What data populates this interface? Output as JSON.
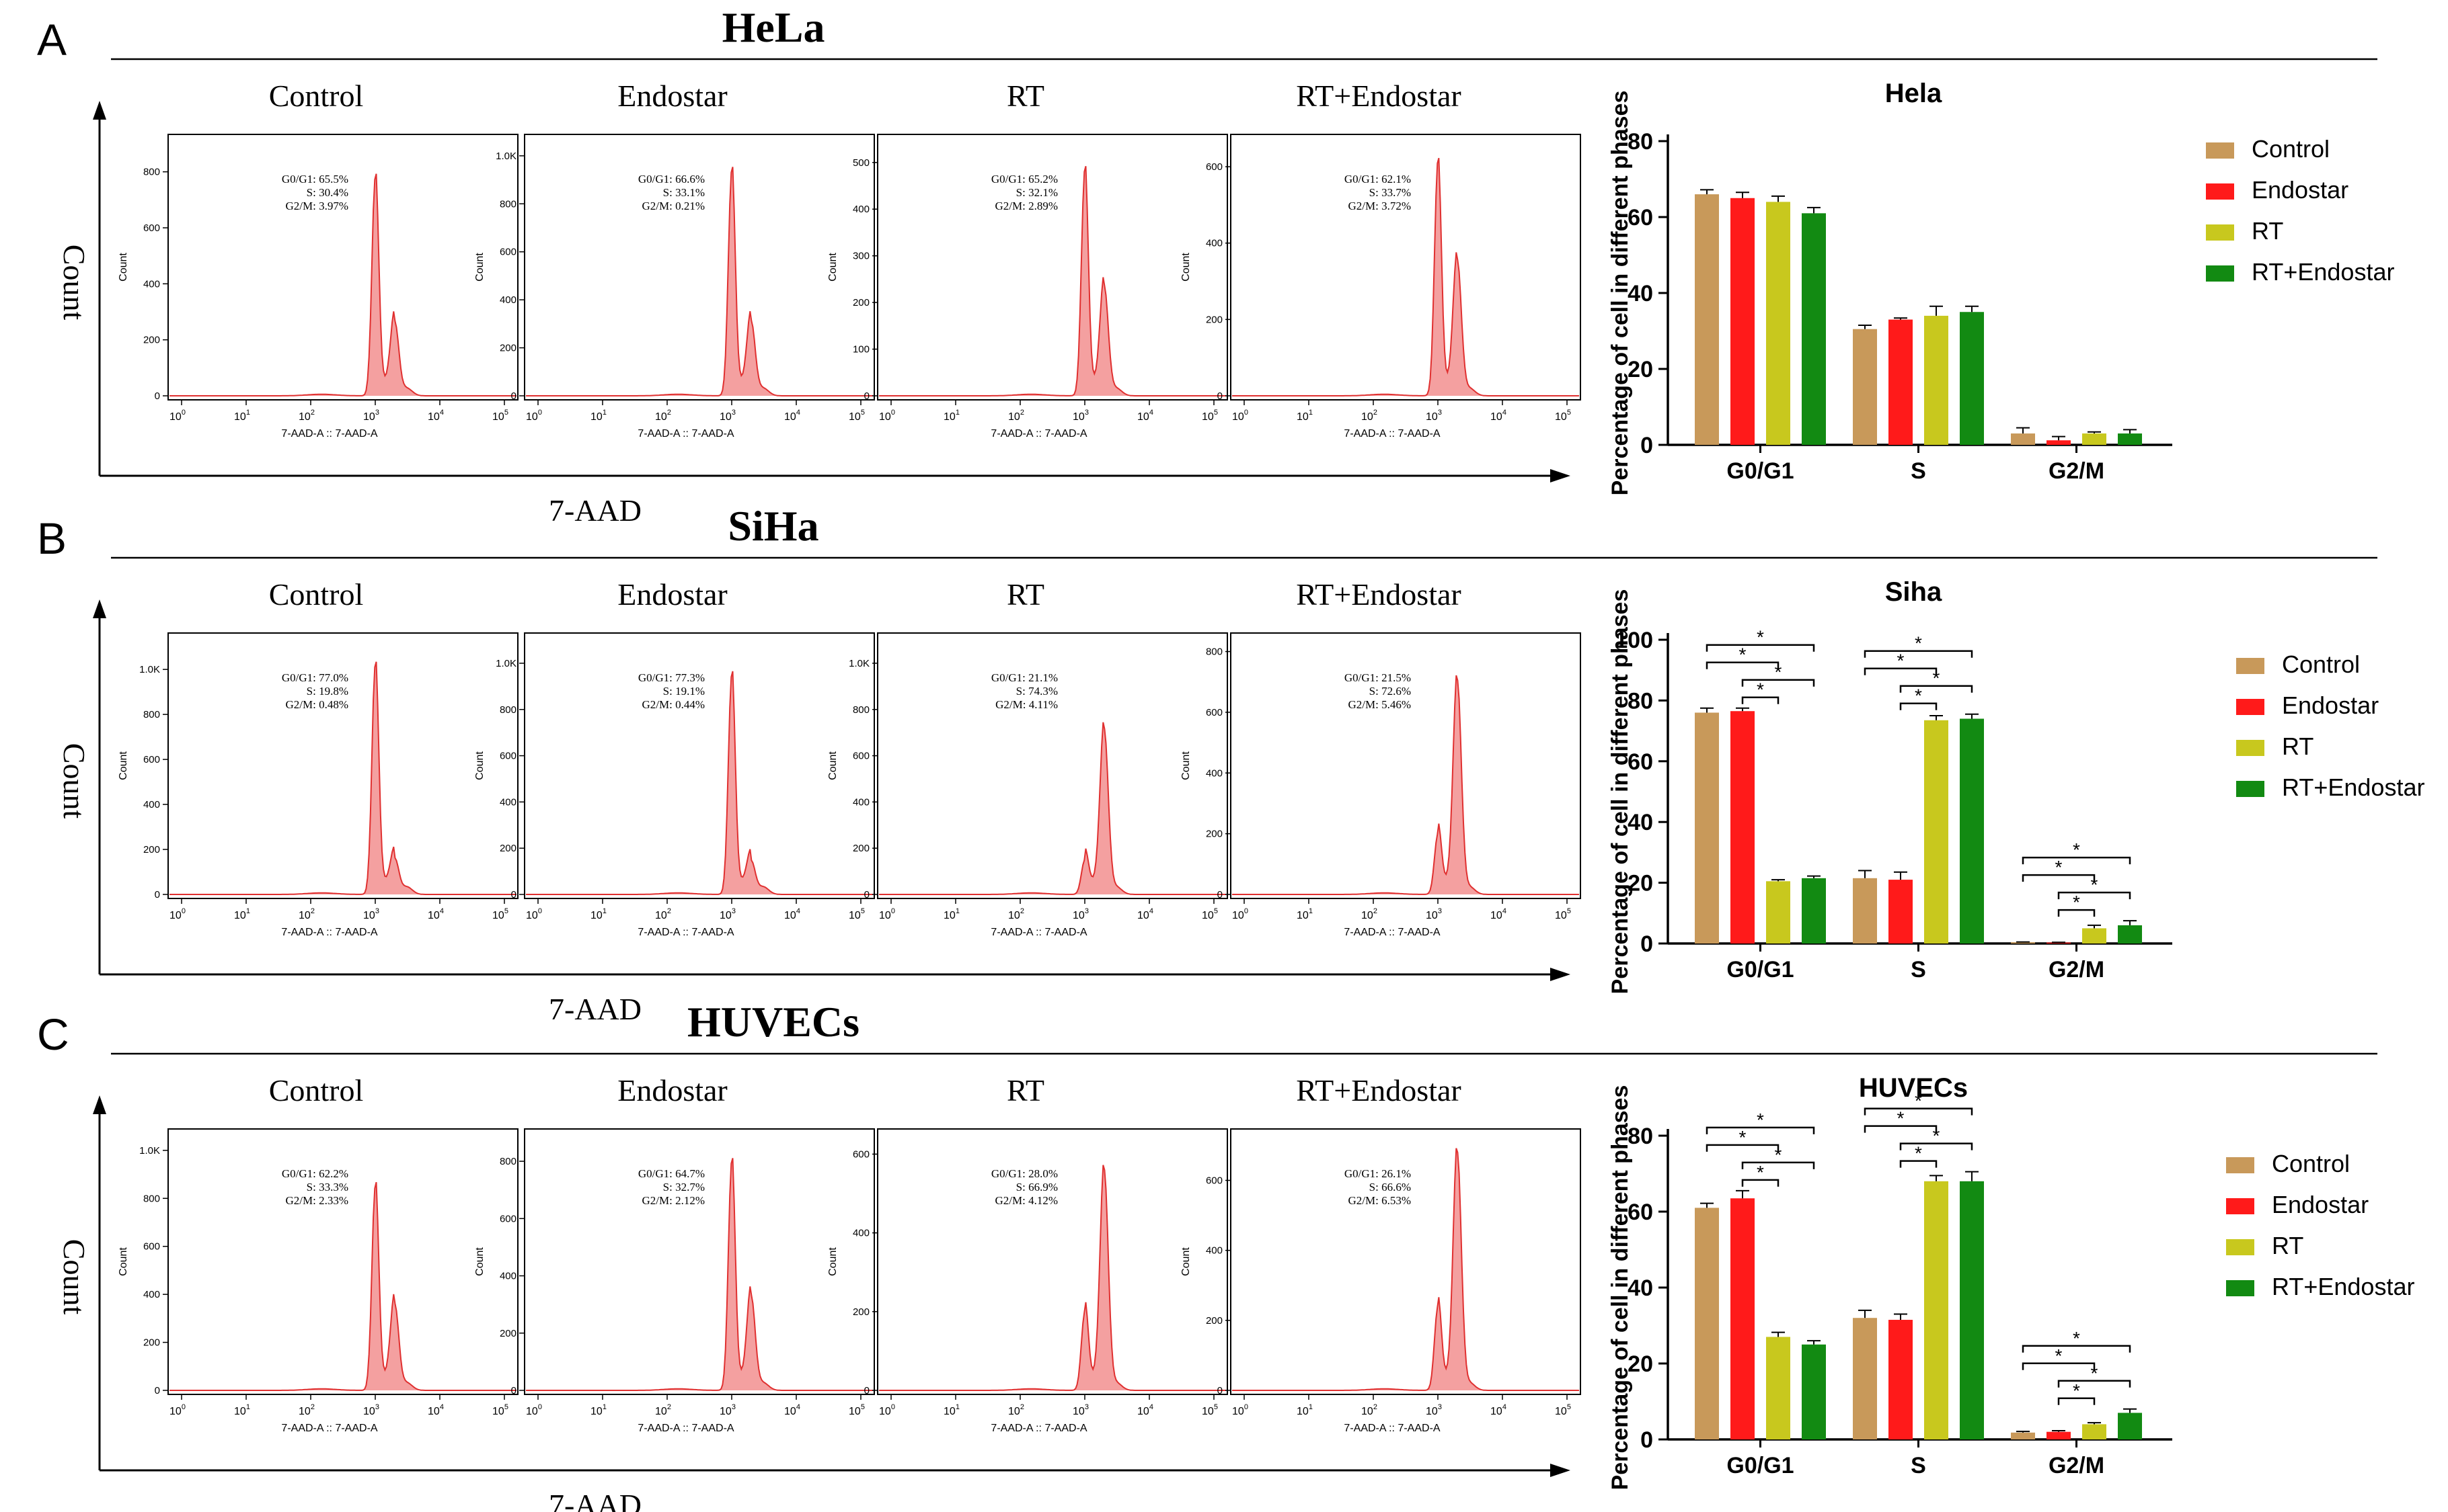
{
  "colors": {
    "Control": "#c8995a",
    "Endostar": "#ff1a1a",
    "RT": "#c8c81e",
    "RT+Endostar": "#128a12",
    "histogram_fill": "#f4a0a0",
    "histogram_line": "#e03030"
  },
  "axis_labels": {
    "flow_y": "Count",
    "flow_x": "7-AAD",
    "hist_x": "7-AAD-A :: 7-AAD-A",
    "hist_y": "Count",
    "bar_y": "Percentage of cell in different phases"
  },
  "panels": [
    {
      "letter": "A",
      "cell_line": "HeLa",
      "chart_title": "Hela",
      "histograms": [
        {
          "title": "Control",
          "ticks": [
            "0",
            "200",
            "400",
            "600",
            "800"
          ],
          "ymax": 900,
          "g1": 1000,
          "g1h": 780,
          "g2": 2000,
          "g2h": 265,
          "text": [
            "G0/G1: 65.5%",
            "S: 30.4%",
            "G2/M: 3.97%"
          ]
        },
        {
          "title": "Endostar",
          "ticks": [
            "0",
            "200",
            "400",
            "600",
            "800",
            "1.0K"
          ],
          "ymax": 1050,
          "g1": 1000,
          "g1h": 940,
          "g2": 2000,
          "g2h": 310,
          "text": [
            "G0/G1: 66.6%",
            "S: 33.1%",
            "G2/M: 0.21%"
          ]
        },
        {
          "title": "RT",
          "ticks": [
            "0",
            "100",
            "200",
            "300",
            "400",
            "500"
          ],
          "ymax": 540,
          "g1": 1000,
          "g1h": 485,
          "g2": 2000,
          "g2h": 235,
          "text": [
            "G0/G1: 65.2%",
            "S: 32.1%",
            "G2/M: 2.89%"
          ]
        },
        {
          "title": "RT+Endostar",
          "ticks": [
            "0",
            "200",
            "400",
            "600"
          ],
          "ymax": 660,
          "g1": 1000,
          "g1h": 615,
          "g2": 2000,
          "g2h": 355,
          "text": [
            "G0/G1: 62.1%",
            "S: 33.7%",
            "G2/M: 3.72%"
          ]
        }
      ],
      "ymax": 80,
      "yticks": [
        0,
        20,
        40,
        60,
        80
      ],
      "brackets": [],
      "show_flow_xlabel": true
    },
    {
      "letter": "B",
      "cell_line": "SiHa",
      "chart_title": "Siha",
      "histograms": [
        {
          "title": "Control",
          "ticks": [
            "0",
            "200",
            "400",
            "600",
            "800",
            "1.0K"
          ],
          "ymax": 1120,
          "g1": 1000,
          "g1h": 1020,
          "g2": 2000,
          "g2h": 160,
          "text": [
            "G0/G1: 77.0%",
            "S: 19.8%",
            "G2/M: 0.48%"
          ]
        },
        {
          "title": "Endostar",
          "ticks": [
            "0",
            "200",
            "400",
            "600",
            "800",
            "1.0K"
          ],
          "ymax": 1090,
          "g1": 1000,
          "g1h": 950,
          "g2": 2000,
          "g2h": 145,
          "text": [
            "G0/G1: 77.3%",
            "S: 19.1%",
            "G2/M: 0.44%"
          ]
        },
        {
          "title": "RT",
          "ticks": [
            "0",
            "200",
            "400",
            "600",
            "800",
            "1.0K"
          ],
          "ymax": 1090,
          "g1": 1000,
          "g1h": 150,
          "g2": 2000,
          "g2h": 715,
          "text": [
            "G0/G1: 21.1%",
            "S: 74.3%",
            "G2/M: 4.11%"
          ]
        },
        {
          "title": "RT+Endostar",
          "ticks": [
            "0",
            "200",
            "400",
            "600",
            "800"
          ],
          "ymax": 830,
          "g1": 1000,
          "g1h": 200,
          "g2": 2000,
          "g2h": 705,
          "text": [
            "G0/G1: 21.5%",
            "S: 72.6%",
            "G2/M: 5.46%"
          ]
        }
      ],
      "ymax": 100,
      "yticks": [
        0,
        20,
        40,
        60,
        80,
        100
      ],
      "brackets": [
        {
          "phase": 0,
          "a": 0,
          "b": 3,
          "level": 1
        },
        {
          "phase": 0,
          "a": 0,
          "b": 2,
          "level": 2
        },
        {
          "phase": 0,
          "a": 1,
          "b": 3,
          "level": 3
        },
        {
          "phase": 0,
          "a": 1,
          "b": 2,
          "level": 4
        },
        {
          "phase": 1,
          "a": 0,
          "b": 3,
          "level": 1
        },
        {
          "phase": 1,
          "a": 0,
          "b": 2,
          "level": 2
        },
        {
          "phase": 1,
          "a": 1,
          "b": 3,
          "level": 3
        },
        {
          "phase": 1,
          "a": 1,
          "b": 2,
          "level": 4
        },
        {
          "phase": 2,
          "a": 0,
          "b": 3,
          "level": 1
        },
        {
          "phase": 2,
          "a": 0,
          "b": 2,
          "level": 2
        },
        {
          "phase": 2,
          "a": 1,
          "b": 3,
          "level": 3
        },
        {
          "phase": 2,
          "a": 1,
          "b": 2,
          "level": 4
        }
      ],
      "show_flow_xlabel": true
    },
    {
      "letter": "C",
      "cell_line": "HUVECs",
      "chart_title": "HUVECs",
      "histograms": [
        {
          "title": "Control",
          "ticks": [
            "0",
            "200",
            "400",
            "600",
            "800",
            "1.0K"
          ],
          "ymax": 1050,
          "g1": 1000,
          "g1h": 850,
          "g2": 2000,
          "g2h": 360,
          "text": [
            "G0/G1: 62.2%",
            "S: 33.3%",
            "G2/M: 2.33%"
          ]
        },
        {
          "title": "Endostar",
          "ticks": [
            "0",
            "200",
            "400",
            "600",
            "800"
          ],
          "ymax": 880,
          "g1": 1000,
          "g1h": 800,
          "g2": 2000,
          "g2h": 330,
          "text": [
            "G0/G1: 64.7%",
            "S: 32.7%",
            "G2/M: 2.12%"
          ]
        },
        {
          "title": "RT",
          "ticks": [
            "0",
            "200",
            "400",
            "600"
          ],
          "ymax": 640,
          "g1": 1000,
          "g1h": 200,
          "g2": 2000,
          "g2h": 560,
          "text": [
            "G0/G1: 28.0%",
            "S: 66.9%",
            "G2/M: 4.12%"
          ]
        },
        {
          "title": "RT+Endostar",
          "ticks": [
            "0",
            "200",
            "400",
            "600"
          ],
          "ymax": 720,
          "g1": 1000,
          "g1h": 240,
          "g2": 2000,
          "g2h": 680,
          "text": [
            "G0/G1: 26.1%",
            "S: 66.6%",
            "G2/M: 6.53%"
          ]
        }
      ],
      "ymax": 80,
      "yticks": [
        0,
        20,
        40,
        60,
        80
      ],
      "brackets": [
        {
          "phase": 0,
          "a": 0,
          "b": 3,
          "level": 1
        },
        {
          "phase": 0,
          "a": 0,
          "b": 2,
          "level": 2
        },
        {
          "phase": 0,
          "a": 1,
          "b": 3,
          "level": 3
        },
        {
          "phase": 0,
          "a": 1,
          "b": 2,
          "level": 4
        },
        {
          "phase": 1,
          "a": 0,
          "b": 3,
          "level": 1
        },
        {
          "phase": 1,
          "a": 0,
          "b": 2,
          "level": 2
        },
        {
          "phase": 1,
          "a": 1,
          "b": 3,
          "level": 3
        },
        {
          "phase": 1,
          "a": 1,
          "b": 2,
          "level": 4
        },
        {
          "phase": 2,
          "a": 0,
          "b": 3,
          "level": 1
        },
        {
          "phase": 2,
          "a": 0,
          "b": 2,
          "level": 2
        },
        {
          "phase": 2,
          "a": 1,
          "b": 3,
          "level": 3
        },
        {
          "phase": 2,
          "a": 1,
          "b": 2,
          "level": 4
        }
      ],
      "show_flow_xlabel": true
    }
  ],
  "chart_data": [
    {
      "type": "bar",
      "title": "Hela",
      "categories": [
        "G0/G1",
        "S",
        "G2/M"
      ],
      "ylabel": "Percentage of cell in different phases",
      "ylim": [
        0,
        80
      ],
      "legend": "right",
      "series": [
        {
          "name": "Control",
          "values": [
            66,
            30.5,
            3
          ],
          "errors": [
            1.2,
            1,
            1.5
          ]
        },
        {
          "name": "Endostar",
          "values": [
            65,
            33,
            1.2
          ],
          "errors": [
            1.5,
            0.4,
            1
          ]
        },
        {
          "name": "RT",
          "values": [
            64,
            34,
            3
          ],
          "errors": [
            1.5,
            2.5,
            0.4
          ]
        },
        {
          "name": "RT+Endostar",
          "values": [
            61,
            35,
            3
          ],
          "errors": [
            1.5,
            1.5,
            1
          ]
        }
      ]
    },
    {
      "type": "bar",
      "title": "Siha",
      "categories": [
        "G0/G1",
        "S",
        "G2/M"
      ],
      "ylabel": "Percentage of cell in different phases",
      "ylim": [
        0,
        100
      ],
      "legend": "right",
      "series": [
        {
          "name": "Control",
          "values": [
            76,
            21.5,
            0.4
          ],
          "errors": [
            1.5,
            2.5,
            0.1
          ]
        },
        {
          "name": "Endostar",
          "values": [
            76.5,
            21,
            0.3
          ],
          "errors": [
            1,
            2.5,
            0.1
          ]
        },
        {
          "name": "RT",
          "values": [
            20.5,
            73.5,
            5
          ],
          "errors": [
            0.5,
            1.5,
            1
          ]
        },
        {
          "name": "RT+Endostar",
          "values": [
            21.5,
            74,
            6
          ],
          "errors": [
            0.7,
            1.5,
            1.5
          ]
        }
      ]
    },
    {
      "type": "bar",
      "title": "HUVECs",
      "categories": [
        "G0/G1",
        "S",
        "G2/M"
      ],
      "ylabel": "Percentage of cell in different phases",
      "ylim": [
        0,
        80
      ],
      "legend": "right",
      "series": [
        {
          "name": "Control",
          "values": [
            61,
            32,
            1.8
          ],
          "errors": [
            1.2,
            2,
            0.3
          ]
        },
        {
          "name": "Endostar",
          "values": [
            63.5,
            31.5,
            2
          ],
          "errors": [
            2,
            1.5,
            0.3
          ]
        },
        {
          "name": "RT",
          "values": [
            27,
            68,
            4
          ],
          "errors": [
            1.2,
            1.5,
            0.4
          ]
        },
        {
          "name": "RT+Endostar",
          "values": [
            25,
            68,
            7
          ],
          "errors": [
            1,
            2.5,
            1
          ]
        }
      ]
    }
  ]
}
